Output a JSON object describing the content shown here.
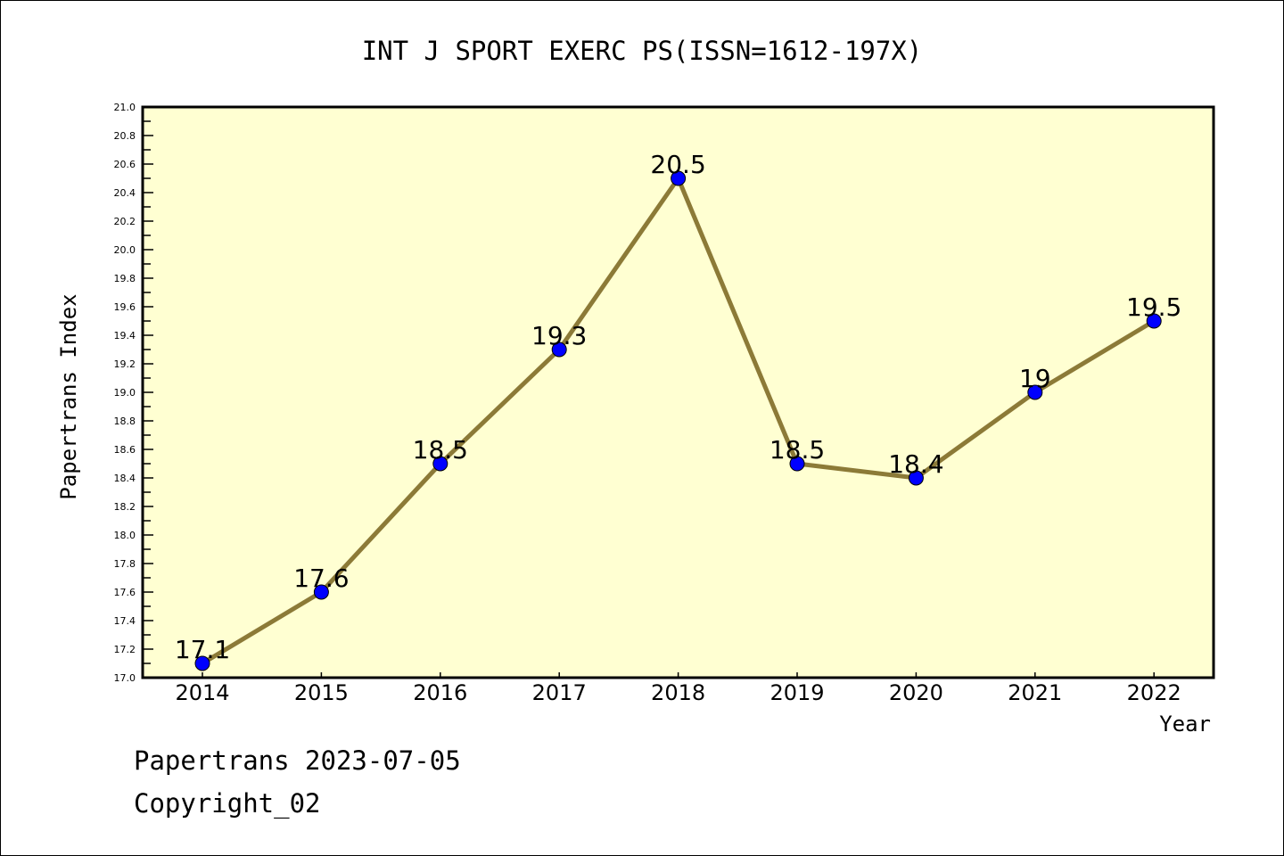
{
  "chart_data": {
    "type": "line",
    "title": "INT J SPORT EXERC PS(ISSN=1612-197X)",
    "xlabel": "Year",
    "ylabel": "Papertrans Index",
    "categories": [
      "2014",
      "2015",
      "2016",
      "2017",
      "2018",
      "2019",
      "2020",
      "2021",
      "2022"
    ],
    "series": [
      {
        "name": "Papertrans Index",
        "values": [
          17.1,
          17.6,
          18.5,
          19.3,
          20.5,
          18.5,
          18.4,
          19.0,
          19.5
        ]
      }
    ],
    "data_labels": [
      "17.1",
      "17.6",
      "18.5",
      "19.3",
      "20.5",
      "18.5",
      "18.4",
      "19",
      "19.5"
    ],
    "ylim": [
      17.0,
      21.0
    ],
    "yticks": [
      "17.0",
      "17.2",
      "17.4",
      "17.6",
      "17.8",
      "18.0",
      "18.2",
      "18.4",
      "18.6",
      "18.8",
      "19.0",
      "19.2",
      "19.4",
      "19.6",
      "19.8",
      "20.0",
      "20.2",
      "20.4",
      "20.6",
      "20.8",
      "21.0"
    ],
    "grid": false,
    "colors": {
      "line": "#8c7a37",
      "marker": "#0000ff",
      "plot_bg": "#ffffd2"
    }
  },
  "footer": {
    "line1": "Papertrans 2023-07-05",
    "line2": "Copyright_02"
  }
}
